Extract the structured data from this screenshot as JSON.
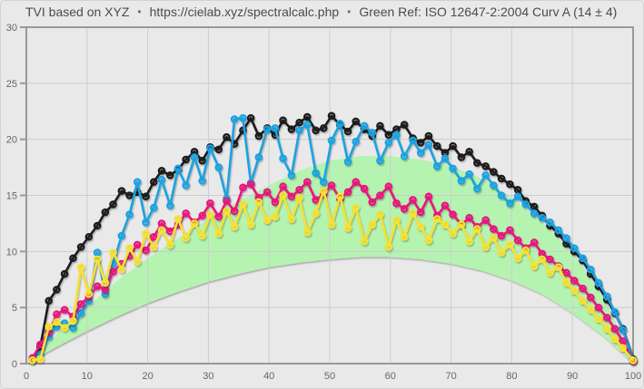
{
  "header": {
    "app_title": "TVI based on XYZ",
    "bullet": "•",
    "url": "https://cielab.xyz/spectralcalc.php",
    "reference_label": "Green Ref: ISO 12647-2:2004 Curv A (14 ± 4)"
  },
  "chart_data": {
    "type": "line",
    "title": "TVI based on XYZ • https://cielab.xyz/spectralcalc.php • Green Ref: ISO 12647-2:2004 Curv A (14 ± 4)",
    "xlabel": "",
    "ylabel": "",
    "grid": true,
    "legend_position": "none",
    "background_color": "#e9e9e9",
    "grid_color": "#cdcdcd",
    "axis_color": "#999999",
    "label_color": "#666666",
    "x_axis": {
      "min": 0,
      "max": 100,
      "ticks": [
        0,
        10,
        20,
        30,
        40,
        50,
        60,
        70,
        80,
        90,
        100
      ]
    },
    "y_axis": {
      "min": 0,
      "max": 30,
      "ticks": [
        0,
        5,
        10,
        15,
        20,
        25,
        30
      ]
    },
    "reference_band": {
      "name": "ISO 12647-2:2004 Curve A (14 ± 4)",
      "color": "#b5f3b1",
      "x": [
        0,
        5,
        10,
        15,
        20,
        25,
        30,
        35,
        40,
        45,
        50,
        55,
        60,
        65,
        70,
        75,
        80,
        85,
        90,
        95,
        100
      ],
      "upper": [
        0,
        2.6,
        5.0,
        7.4,
        9.4,
        11.2,
        12.9,
        14.5,
        15.9,
        17.2,
        18.1,
        18.5,
        18.5,
        18.2,
        17.6,
        16.5,
        14.8,
        12.6,
        9.9,
        6.0,
        0
      ],
      "lower": [
        0,
        1.5,
        2.9,
        4.2,
        5.4,
        6.4,
        7.3,
        8.0,
        8.6,
        9.0,
        9.3,
        9.5,
        9.5,
        9.3,
        8.9,
        8.3,
        7.4,
        6.2,
        4.5,
        2.5,
        0
      ]
    },
    "x": [
      1,
      2.3,
      3.7,
      5,
      6.3,
      7.7,
      9,
      10.3,
      11.7,
      13,
      14.3,
      15.7,
      17,
      18.3,
      19.7,
      21,
      22.3,
      23.7,
      25,
      26.3,
      27.7,
      29,
      30.3,
      31.7,
      33,
      34.3,
      35.7,
      37,
      38.3,
      39.7,
      41,
      42.3,
      43.7,
      45,
      46.3,
      47.7,
      49,
      50.3,
      51.7,
      53,
      54.3,
      55.7,
      57,
      58.3,
      59.7,
      61,
      62.3,
      63.7,
      65,
      66.3,
      67.7,
      69,
      70.3,
      71.7,
      73,
      74.3,
      75.7,
      77,
      78.3,
      79.7,
      81,
      82.3,
      83.7,
      85,
      86.3,
      87.7,
      89,
      90.3,
      91.7,
      93,
      94.3,
      95.7,
      97,
      98.3,
      100
    ],
    "series": [
      {
        "name": "black",
        "color": "#1c1c1c",
        "values": [
          0.4,
          1.5,
          5.6,
          6.6,
          8.0,
          9.4,
          10.4,
          11.3,
          12.3,
          13.5,
          14.2,
          15.4,
          15.0,
          15.3,
          14.9,
          16.2,
          17.2,
          16.8,
          17.3,
          18.2,
          18.9,
          18.1,
          19.3,
          19.1,
          20.2,
          19.6,
          20.8,
          21.9,
          20.3,
          21.0,
          20.4,
          21.7,
          20.9,
          21.5,
          22.0,
          20.8,
          21.0,
          22.1,
          21.3,
          20.7,
          21.6,
          20.9,
          20.3,
          21.2,
          20.4,
          20.9,
          21.3,
          20.1,
          19.7,
          20.3,
          19.4,
          18.8,
          19.4,
          18.4,
          18.9,
          17.9,
          17.6,
          17.1,
          16.5,
          16.0,
          15.5,
          14.5,
          14.0,
          13.2,
          12.3,
          11.6,
          10.7,
          10.0,
          9.2,
          8.0,
          6.9,
          5.7,
          4.5,
          3.1,
          0.4
        ]
      },
      {
        "name": "cyan",
        "color": "#1da2e0",
        "values": [
          0.3,
          0.8,
          2.4,
          3.3,
          3.6,
          3.2,
          4.5,
          5.6,
          9.9,
          6.2,
          8.9,
          11.4,
          13.3,
          16.2,
          12.6,
          13.9,
          16.4,
          14.1,
          17.4,
          15.9,
          18.4,
          16.3,
          19.2,
          17.5,
          14.7,
          21.8,
          21.9,
          16.1,
          18.4,
          20.9,
          21.0,
          18.3,
          16.8,
          20.8,
          21.3,
          17.0,
          16.2,
          19.9,
          21.4,
          18.0,
          19.8,
          21.2,
          20.6,
          18.1,
          19.7,
          20.4,
          18.5,
          19.9,
          18.8,
          19.5,
          17.6,
          18.3,
          17.4,
          16.3,
          16.9,
          15.6,
          16.8,
          15.9,
          15.0,
          14.3,
          14.9,
          14.2,
          13.4,
          13.0,
          12.6,
          11.9,
          11.2,
          10.3,
          9.4,
          8.4,
          7.2,
          6.0,
          4.6,
          3.0,
          0.3
        ]
      },
      {
        "name": "magenta",
        "color": "#e8157d",
        "values": [
          0.5,
          1.7,
          2.8,
          4.4,
          4.8,
          4.2,
          5.3,
          6.0,
          6.9,
          6.6,
          8.2,
          8.9,
          9.6,
          10.6,
          10.1,
          11.3,
          12.5,
          11.8,
          12.4,
          13.4,
          12.6,
          13.2,
          14.3,
          13.1,
          14.5,
          13.6,
          15.7,
          16.0,
          14.8,
          15.3,
          14.4,
          15.8,
          14.9,
          15.5,
          16.2,
          14.6,
          15.1,
          15.9,
          14.7,
          15.3,
          16.2,
          15.6,
          14.4,
          15.0,
          15.8,
          14.3,
          13.8,
          14.6,
          13.5,
          14.9,
          13.2,
          14.1,
          13.3,
          12.4,
          13.0,
          12.2,
          12.8,
          12.0,
          11.4,
          11.9,
          11.0,
          10.3,
          10.8,
          9.8,
          9.3,
          8.7,
          8.1,
          7.4,
          6.7,
          5.9,
          5.0,
          4.1,
          3.1,
          2.0,
          0.2
        ]
      },
      {
        "name": "yellow",
        "color": "#f5e233",
        "values": [
          0.3,
          0.4,
          3.3,
          3.7,
          3.2,
          3.8,
          8.6,
          6.2,
          9.3,
          7.2,
          9.9,
          8.4,
          10.3,
          9.1,
          11.6,
          10.4,
          11.9,
          10.6,
          12.9,
          11.2,
          12.5,
          11.4,
          13.3,
          11.6,
          13.6,
          12.2,
          14.2,
          12.4,
          14.4,
          12.8,
          13.1,
          15.0,
          12.9,
          14.8,
          11.7,
          13.4,
          15.4,
          12.4,
          14.9,
          12.1,
          13.9,
          10.9,
          12.4,
          13.3,
          10.4,
          12.8,
          11.3,
          13.4,
          12.2,
          11.0,
          12.9,
          12.4,
          11.6,
          12.4,
          10.9,
          12.0,
          10.4,
          11.2,
          9.9,
          10.6,
          9.4,
          10.1,
          8.7,
          9.3,
          8.1,
          8.6,
          7.2,
          6.5,
          5.6,
          4.8,
          4.0,
          3.1,
          2.2,
          1.4,
          0.3
        ]
      }
    ]
  }
}
